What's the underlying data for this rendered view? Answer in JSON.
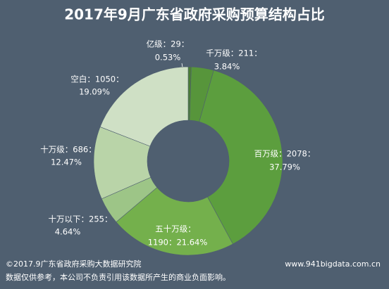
{
  "chart_data": {
    "type": "donut",
    "title": "2017年9月广东省政府采购预算结构占比",
    "categories": [
      "亿级",
      "千万级",
      "百万级",
      "五十万级",
      "十万以下",
      "十万级",
      "空白"
    ],
    "values": [
      29,
      211,
      2078,
      1190,
      255,
      686,
      1050
    ],
    "value_labels": [
      [
        "亿级：29：",
        "0.53%"
      ],
      [
        "千万级：211：",
        "3.84%"
      ],
      [
        "百万级：2078：",
        "37.79%"
      ],
      [
        "五十万级：",
        "1190：21.64%"
      ],
      [
        "十万以下：255：",
        "4.64%"
      ],
      [
        "十万级：686：",
        "12.47%"
      ],
      [
        "空白：1050：",
        "19.09%"
      ]
    ],
    "colors": [
      "#4b7d35",
      "#57953b",
      "#5c9e3e",
      "#74b04c",
      "#9dc587",
      "#b9d4a8",
      "#cfe0c5"
    ],
    "footer": {
      "source": "©2017.9广东省政府采购大数据研究院",
      "website": "www.941bigdata.com.cn",
      "disclaimer": "数据仅供参考，本公司不负责引用该数据所产生的商业负面影响。"
    }
  }
}
